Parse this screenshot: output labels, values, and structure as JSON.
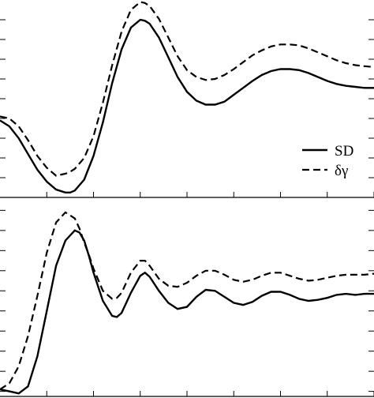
{
  "chart_data": [
    {
      "type": "line",
      "panel": "top",
      "title": "",
      "xlabel": "",
      "ylabel": "",
      "xlim": [
        0,
        8
      ],
      "ylim": [
        -0.2,
        1.8
      ],
      "x_ticks": [
        1,
        2,
        3,
        4,
        5,
        6,
        7,
        8
      ],
      "y_ticks": [
        0.0,
        0.2,
        0.4,
        0.6,
        0.8,
        1.0,
        1.2,
        1.4,
        1.6,
        1.8
      ],
      "legend": "right",
      "legend_entries": [
        {
          "label": "SD",
          "style": "solid"
        },
        {
          "label": "δγ",
          "style": "dashed"
        }
      ],
      "series": [
        {
          "style": "solid",
          "x": [
            0.0,
            0.2,
            0.4,
            0.6,
            0.8,
            1.0,
            1.2,
            1.4,
            1.5,
            1.6,
            1.8,
            2.0,
            2.2,
            2.4,
            2.6,
            2.8,
            3.0,
            3.1,
            3.2,
            3.4,
            3.6,
            3.8,
            4.0,
            4.2,
            4.4,
            4.6,
            4.8,
            5.0,
            5.2,
            5.4,
            5.6,
            5.8,
            6.0,
            6.2,
            6.4,
            6.6,
            6.8,
            7.0,
            7.2,
            7.4,
            7.6,
            7.8,
            8.0
          ],
          "y": [
            0.58,
            0.52,
            0.4,
            0.24,
            0.08,
            -0.04,
            -0.12,
            -0.15,
            -0.15,
            -0.13,
            -0.02,
            0.22,
            0.56,
            0.96,
            1.3,
            1.52,
            1.6,
            1.59,
            1.56,
            1.42,
            1.22,
            1.02,
            0.87,
            0.78,
            0.74,
            0.74,
            0.77,
            0.84,
            0.91,
            0.98,
            1.04,
            1.08,
            1.1,
            1.1,
            1.09,
            1.06,
            1.02,
            0.98,
            0.95,
            0.93,
            0.92,
            0.91,
            0.91
          ]
        },
        {
          "style": "dashed",
          "x": [
            0.0,
            0.2,
            0.4,
            0.6,
            0.8,
            1.0,
            1.2,
            1.4,
            1.5,
            1.6,
            1.8,
            2.0,
            2.2,
            2.4,
            2.6,
            2.8,
            3.0,
            3.1,
            3.2,
            3.4,
            3.6,
            3.8,
            4.0,
            4.2,
            4.4,
            4.6,
            4.8,
            5.0,
            5.2,
            5.4,
            5.6,
            5.8,
            6.0,
            6.2,
            6.4,
            6.6,
            6.8,
            7.0,
            7.2,
            7.4,
            7.6,
            7.8,
            8.0
          ],
          "y": [
            0.62,
            0.6,
            0.52,
            0.38,
            0.22,
            0.1,
            0.02,
            0.04,
            0.06,
            0.09,
            0.2,
            0.42,
            0.76,
            1.14,
            1.48,
            1.7,
            1.78,
            1.77,
            1.74,
            1.61,
            1.42,
            1.23,
            1.09,
            1.02,
            0.99,
            1.0,
            1.04,
            1.1,
            1.17,
            1.24,
            1.29,
            1.33,
            1.35,
            1.35,
            1.34,
            1.31,
            1.27,
            1.23,
            1.19,
            1.16,
            1.14,
            1.13,
            1.12
          ]
        }
      ]
    },
    {
      "type": "line",
      "panel": "bottom",
      "title": "",
      "xlabel": "",
      "ylabel": "",
      "xlim": [
        0,
        8
      ],
      "ylim": [
        -0.05,
        1.85
      ],
      "x_ticks": [
        1,
        2,
        3,
        4,
        5,
        6,
        7,
        8
      ],
      "y_ticks": [
        0.0,
        0.2,
        0.4,
        0.6,
        0.8,
        1.0,
        1.2,
        1.4,
        1.6,
        1.8
      ],
      "series": [
        {
          "style": "solid",
          "x": [
            0.0,
            0.2,
            0.4,
            0.6,
            0.8,
            1.0,
            1.2,
            1.4,
            1.6,
            1.7,
            1.8,
            1.9,
            2.0,
            2.2,
            2.4,
            2.5,
            2.6,
            2.8,
            3.0,
            3.1,
            3.2,
            3.4,
            3.6,
            3.8,
            4.0,
            4.2,
            4.4,
            4.6,
            4.8,
            5.0,
            5.2,
            5.4,
            5.6,
            5.8,
            6.0,
            6.2,
            6.4,
            6.6,
            6.8,
            7.0,
            7.2,
            7.4,
            7.6,
            7.8,
            8.0
          ],
          "y": [
            0.02,
            0.0,
            -0.02,
            0.05,
            0.35,
            0.8,
            1.25,
            1.5,
            1.6,
            1.58,
            1.5,
            1.35,
            1.18,
            0.9,
            0.75,
            0.74,
            0.78,
            0.98,
            1.15,
            1.18,
            1.14,
            1.0,
            0.88,
            0.82,
            0.84,
            0.94,
            1.01,
            1.0,
            0.94,
            0.88,
            0.86,
            0.89,
            0.95,
            0.99,
            0.99,
            0.96,
            0.92,
            0.9,
            0.91,
            0.93,
            0.96,
            0.97,
            0.96,
            0.97,
            0.97
          ]
        },
        {
          "style": "dashed",
          "x": [
            0.0,
            0.2,
            0.4,
            0.6,
            0.8,
            1.0,
            1.2,
            1.4,
            1.6,
            1.7,
            1.8,
            1.9,
            2.0,
            2.2,
            2.4,
            2.5,
            2.6,
            2.8,
            3.0,
            3.1,
            3.2,
            3.4,
            3.6,
            3.8,
            4.0,
            4.2,
            4.4,
            4.6,
            4.8,
            5.0,
            5.2,
            5.4,
            5.6,
            5.8,
            6.0,
            6.2,
            6.4,
            6.6,
            6.8,
            7.0,
            7.2,
            7.4,
            7.6,
            7.8,
            8.0
          ],
          "y": [
            0.02,
            0.08,
            0.25,
            0.55,
            0.95,
            1.38,
            1.68,
            1.78,
            1.72,
            1.62,
            1.48,
            1.36,
            1.22,
            1.0,
            0.92,
            0.93,
            0.98,
            1.18,
            1.3,
            1.3,
            1.25,
            1.12,
            1.05,
            1.04,
            1.08,
            1.15,
            1.2,
            1.2,
            1.16,
            1.11,
            1.09,
            1.11,
            1.15,
            1.18,
            1.18,
            1.15,
            1.12,
            1.1,
            1.11,
            1.13,
            1.15,
            1.16,
            1.16,
            1.16,
            1.17
          ]
        }
      ]
    }
  ]
}
